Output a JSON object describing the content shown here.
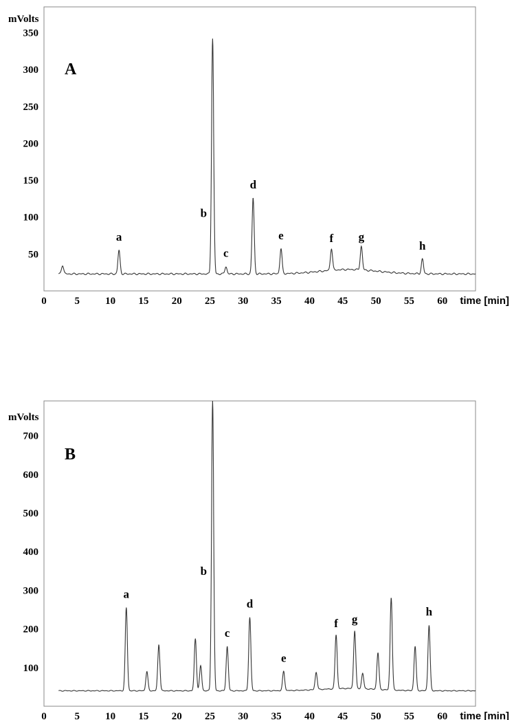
{
  "chart_data": [
    {
      "type": "line",
      "panel_label": "A",
      "ylabel": "mVolts",
      "xlabel": "time [min]",
      "xlim": [
        0,
        65
      ],
      "ylim": [
        0,
        385
      ],
      "x_ticks": [
        0,
        5,
        10,
        15,
        20,
        25,
        30,
        35,
        40,
        45,
        50,
        55,
        60
      ],
      "y_ticks": [
        50,
        100,
        150,
        200,
        250,
        300,
        350
      ],
      "baseline": 23,
      "peaks": [
        {
          "label": "",
          "time": 2.8,
          "height": 35
        },
        {
          "label": "a",
          "time": 11.3,
          "height": 55
        },
        {
          "label": "b",
          "time": 25.4,
          "height": 342
        },
        {
          "label": "c",
          "time": 27.4,
          "height": 33
        },
        {
          "label": "d",
          "time": 31.5,
          "height": 126
        },
        {
          "label": "e",
          "time": 35.7,
          "height": 57
        },
        {
          "label": "f",
          "time": 43.3,
          "height": 53
        },
        {
          "label": "g",
          "time": 47.8,
          "height": 55
        },
        {
          "label": "h",
          "time": 57.0,
          "height": 43
        }
      ]
    },
    {
      "type": "line",
      "panel_label": "B",
      "ylabel": "mVolts",
      "xlabel": "time [min]",
      "xlim": [
        0,
        65
      ],
      "ylim": [
        0,
        790
      ],
      "x_ticks": [
        0,
        5,
        10,
        15,
        20,
        25,
        30,
        35,
        40,
        45,
        50,
        55,
        60
      ],
      "y_ticks": [
        100,
        200,
        300,
        400,
        500,
        600,
        700
      ],
      "baseline": 40,
      "peaks": [
        {
          "label": "a",
          "time": 12.4,
          "height": 255
        },
        {
          "label": "",
          "time": 15.5,
          "height": 90
        },
        {
          "label": "",
          "time": 17.3,
          "height": 160
        },
        {
          "label": "",
          "time": 22.8,
          "height": 175
        },
        {
          "label": "",
          "time": 23.6,
          "height": 105
        },
        {
          "label": "b",
          "time": 25.4,
          "height": 790
        },
        {
          "label": "c",
          "time": 27.6,
          "height": 155
        },
        {
          "label": "d",
          "time": 31.0,
          "height": 230
        },
        {
          "label": "e",
          "time": 36.1,
          "height": 90
        },
        {
          "label": "",
          "time": 41.0,
          "height": 85
        },
        {
          "label": "f",
          "time": 44.0,
          "height": 180
        },
        {
          "label": "g",
          "time": 46.8,
          "height": 190
        },
        {
          "label": "",
          "time": 48.0,
          "height": 80
        },
        {
          "label": "",
          "time": 50.3,
          "height": 135
        },
        {
          "label": "",
          "time": 52.3,
          "height": 280
        },
        {
          "label": "",
          "time": 55.9,
          "height": 155
        },
        {
          "label": "h",
          "time": 58.0,
          "height": 210
        }
      ]
    }
  ]
}
